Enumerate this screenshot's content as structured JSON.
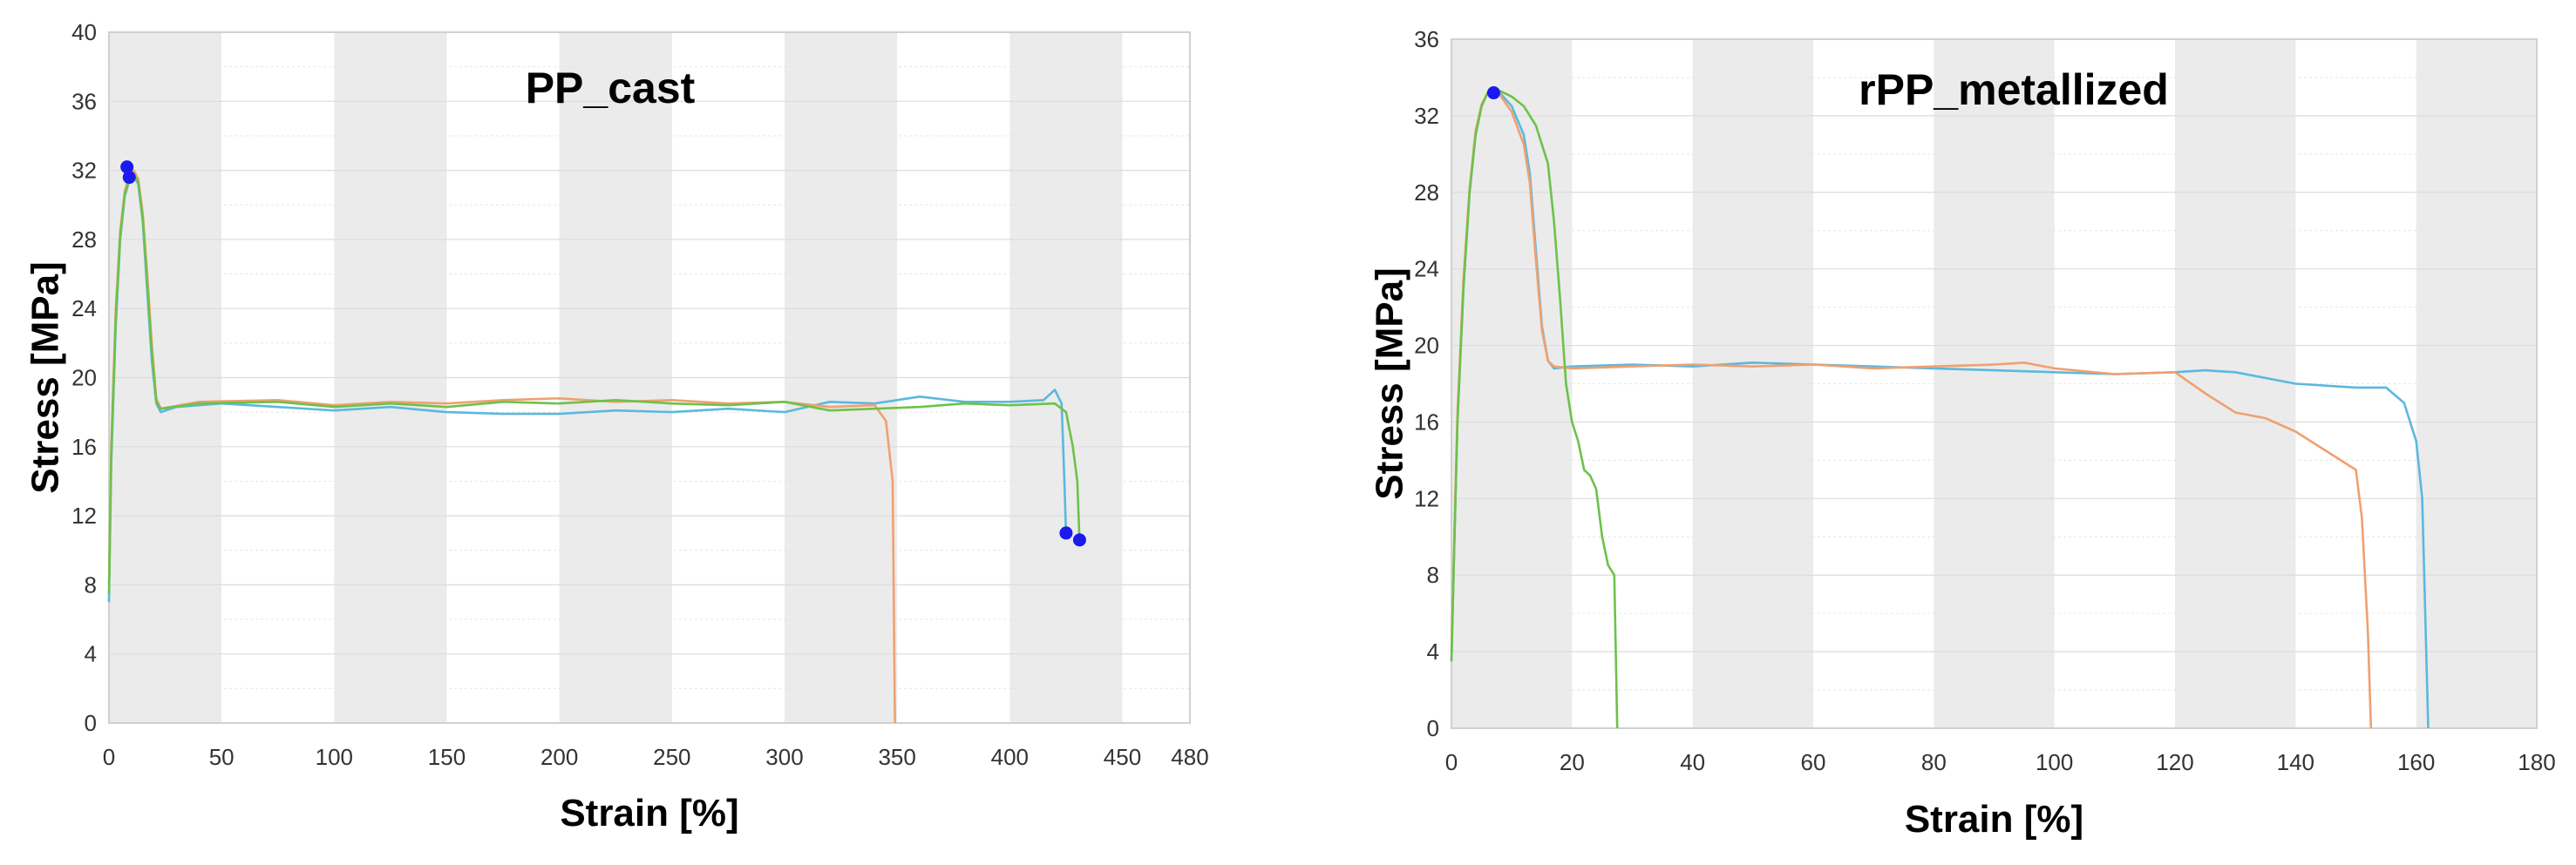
{
  "chart_data": [
    {
      "type": "line",
      "title": "PP_cast",
      "xlabel": "Strain [%]",
      "ylabel": "Stress [MPa]",
      "xlim": [
        0,
        480
      ],
      "ylim": [
        0,
        40
      ],
      "xticks": [
        0,
        50,
        100,
        150,
        200,
        250,
        300,
        350,
        400,
        450,
        480
      ],
      "yticks": [
        0,
        4,
        8,
        12,
        16,
        20,
        24,
        28,
        32,
        36,
        40
      ],
      "grid": true,
      "series": [
        {
          "color": "#5bb8de",
          "points": [
            [
              0,
              7
            ],
            [
              1,
              15
            ],
            [
              3,
              23
            ],
            [
              5,
              28
            ],
            [
              7,
              30.5
            ],
            [
              9,
              31.4
            ],
            [
              11,
              31.7
            ],
            [
              13,
              31.2
            ],
            [
              15,
              29
            ],
            [
              17,
              25
            ],
            [
              19,
              21
            ],
            [
              21,
              18.5
            ],
            [
              23,
              18.0
            ],
            [
              30,
              18.3
            ],
            [
              50,
              18.5
            ],
            [
              75,
              18.3
            ],
            [
              100,
              18.1
            ],
            [
              125,
              18.3
            ],
            [
              150,
              18.0
            ],
            [
              175,
              17.9
            ],
            [
              200,
              17.9
            ],
            [
              225,
              18.1
            ],
            [
              250,
              18.0
            ],
            [
              275,
              18.2
            ],
            [
              300,
              18.0
            ],
            [
              320,
              18.6
            ],
            [
              340,
              18.5
            ],
            [
              360,
              18.9
            ],
            [
              380,
              18.6
            ],
            [
              400,
              18.6
            ],
            [
              415,
              18.7
            ],
            [
              420,
              19.3
            ],
            [
              423,
              18.5
            ],
            [
              424,
              15
            ],
            [
              425,
              11
            ]
          ]
        },
        {
          "color": "#f0a070",
          "points": [
            [
              0,
              8
            ],
            [
              1,
              16
            ],
            [
              3,
              24
            ],
            [
              5,
              28.5
            ],
            [
              7,
              30.8
            ],
            [
              9,
              31.7
            ],
            [
              11,
              32.0
            ],
            [
              13,
              31.5
            ],
            [
              15,
              29.5
            ],
            [
              17,
              26
            ],
            [
              19,
              22
            ],
            [
              21,
              18.8
            ],
            [
              23,
              18.2
            ],
            [
              40,
              18.6
            ],
            [
              75,
              18.7
            ],
            [
              100,
              18.4
            ],
            [
              125,
              18.6
            ],
            [
              150,
              18.5
            ],
            [
              175,
              18.7
            ],
            [
              200,
              18.8
            ],
            [
              225,
              18.6
            ],
            [
              250,
              18.7
            ],
            [
              275,
              18.5
            ],
            [
              300,
              18.6
            ],
            [
              320,
              18.3
            ],
            [
              340,
              18.4
            ],
            [
              345,
              17.5
            ],
            [
              348,
              14
            ],
            [
              349,
              0
            ]
          ]
        },
        {
          "color": "#6cc24a",
          "points": [
            [
              0,
              7.5
            ],
            [
              1,
              15.5
            ],
            [
              3,
              23.5
            ],
            [
              5,
              28.2
            ],
            [
              7,
              30.6
            ],
            [
              9,
              31.5
            ],
            [
              11,
              31.8
            ],
            [
              13,
              31.3
            ],
            [
              15,
              29.2
            ],
            [
              17,
              25.5
            ],
            [
              19,
              21.5
            ],
            [
              21,
              18.6
            ],
            [
              23,
              18.2
            ],
            [
              40,
              18.5
            ],
            [
              75,
              18.6
            ],
            [
              100,
              18.3
            ],
            [
              125,
              18.5
            ],
            [
              150,
              18.3
            ],
            [
              175,
              18.6
            ],
            [
              200,
              18.5
            ],
            [
              225,
              18.7
            ],
            [
              250,
              18.5
            ],
            [
              275,
              18.4
            ],
            [
              300,
              18.6
            ],
            [
              320,
              18.1
            ],
            [
              340,
              18.2
            ],
            [
              360,
              18.3
            ],
            [
              380,
              18.5
            ],
            [
              400,
              18.4
            ],
            [
              420,
              18.5
            ],
            [
              425,
              18.0
            ],
            [
              428,
              16
            ],
            [
              430,
              14
            ],
            [
              431,
              10.5
            ]
          ]
        }
      ],
      "markers": [
        [
          8,
          32.2
        ],
        [
          9,
          31.6
        ],
        [
          425,
          11
        ],
        [
          431,
          10.6
        ]
      ],
      "marker_color": "#1a1aee"
    },
    {
      "type": "line",
      "title": "rPP_metallized",
      "xlabel": "Strain [%]",
      "ylabel": "Stress [MPa]",
      "xlim": [
        0,
        180
      ],
      "ylim": [
        0,
        36
      ],
      "xticks": [
        0,
        20,
        40,
        60,
        80,
        100,
        120,
        140,
        160,
        180
      ],
      "yticks": [
        0,
        4,
        8,
        12,
        16,
        20,
        24,
        28,
        32,
        36
      ],
      "grid": true,
      "series": [
        {
          "color": "#5bb8de",
          "points": [
            [
              0,
              3.5
            ],
            [
              0.5,
              10
            ],
            [
              1,
              16
            ],
            [
              2,
              23
            ],
            [
              3,
              28
            ],
            [
              4,
              31
            ],
            [
              5,
              32.5
            ],
            [
              6,
              33.2
            ],
            [
              7,
              33.3
            ],
            [
              8,
              33.2
            ],
            [
              10,
              32.5
            ],
            [
              12,
              31
            ],
            [
              13,
              29
            ],
            [
              14,
              25
            ],
            [
              15,
              21
            ],
            [
              16,
              19.2
            ],
            [
              17,
              18.8
            ],
            [
              20,
              18.9
            ],
            [
              30,
              19.0
            ],
            [
              40,
              18.9
            ],
            [
              50,
              19.1
            ],
            [
              60,
              19.0
            ],
            [
              70,
              18.9
            ],
            [
              80,
              18.8
            ],
            [
              90,
              18.7
            ],
            [
              100,
              18.6
            ],
            [
              110,
              18.5
            ],
            [
              120,
              18.6
            ],
            [
              125,
              18.7
            ],
            [
              130,
              18.6
            ],
            [
              140,
              18.0
            ],
            [
              150,
              17.8
            ],
            [
              155,
              17.8
            ],
            [
              158,
              17
            ],
            [
              160,
              15
            ],
            [
              161,
              12
            ],
            [
              162,
              0
            ]
          ]
        },
        {
          "color": "#f0a070",
          "points": [
            [
              0,
              4
            ],
            [
              0.5,
              10.5
            ],
            [
              1,
              16.5
            ],
            [
              2,
              23.5
            ],
            [
              3,
              28.2
            ],
            [
              4,
              31.2
            ],
            [
              5,
              32.6
            ],
            [
              6,
              33.2
            ],
            [
              7,
              33.3
            ],
            [
              8,
              33.1
            ],
            [
              10,
              32.2
            ],
            [
              12,
              30.5
            ],
            [
              13,
              28.5
            ],
            [
              14,
              24.5
            ],
            [
              15,
              20.8
            ],
            [
              16,
              19.2
            ],
            [
              17,
              18.9
            ],
            [
              20,
              18.8
            ],
            [
              30,
              18.9
            ],
            [
              40,
              19.0
            ],
            [
              50,
              18.9
            ],
            [
              60,
              19.0
            ],
            [
              70,
              18.8
            ],
            [
              80,
              18.9
            ],
            [
              90,
              19.0
            ],
            [
              95,
              19.1
            ],
            [
              100,
              18.8
            ],
            [
              110,
              18.5
            ],
            [
              120,
              18.6
            ],
            [
              125,
              17.5
            ],
            [
              130,
              16.5
            ],
            [
              135,
              16.2
            ],
            [
              140,
              15.5
            ],
            [
              145,
              14.5
            ],
            [
              150,
              13.5
            ],
            [
              151,
              11
            ],
            [
              152,
              5
            ],
            [
              152.5,
              0
            ]
          ]
        },
        {
          "color": "#6cc24a",
          "points": [
            [
              0,
              3.5
            ],
            [
              0.5,
              10
            ],
            [
              1,
              16
            ],
            [
              2,
              23
            ],
            [
              3,
              28
            ],
            [
              4,
              31
            ],
            [
              5,
              32.5
            ],
            [
              6,
              33.2
            ],
            [
              7,
              33.4
            ],
            [
              8,
              33.3
            ],
            [
              10,
              33.0
            ],
            [
              12,
              32.5
            ],
            [
              14,
              31.5
            ],
            [
              16,
              29.5
            ],
            [
              17,
              26.5
            ],
            [
              18,
              22.5
            ],
            [
              19,
              18
            ],
            [
              20,
              16
            ],
            [
              21,
              15
            ],
            [
              22,
              13.5
            ],
            [
              23,
              13.2
            ],
            [
              24,
              12.5
            ],
            [
              25,
              10
            ],
            [
              26,
              8.5
            ],
            [
              27,
              8
            ],
            [
              27.5,
              0
            ]
          ]
        }
      ],
      "markers": [
        [
          7,
          33.2
        ]
      ],
      "marker_color": "#1a1aee"
    }
  ]
}
